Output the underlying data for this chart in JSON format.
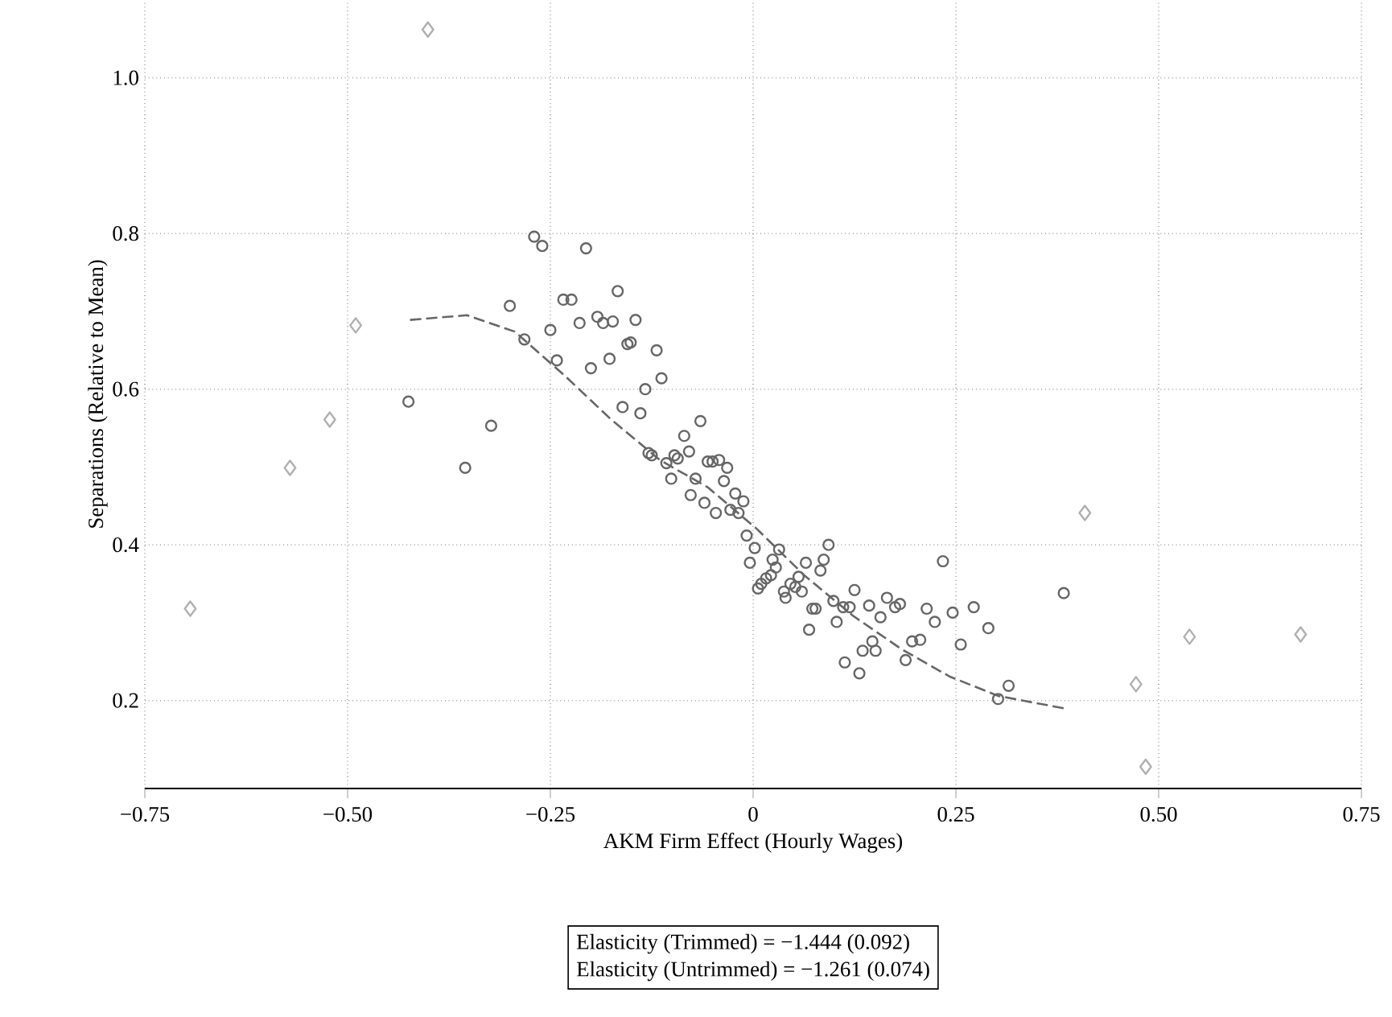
{
  "chart_data": {
    "type": "scatter",
    "xlabel": "AKM Firm Effect (Hourly Wages)",
    "ylabel": "Separations (Relative to Mean)",
    "xlim": [
      -0.75,
      0.75
    ],
    "ylim": [
      0.087,
      1.1
    ],
    "xticks": [
      {
        "value": -0.75,
        "label": "−0.75"
      },
      {
        "value": -0.5,
        "label": "−0.50"
      },
      {
        "value": -0.25,
        "label": "−0.25"
      },
      {
        "value": 0,
        "label": "0"
      },
      {
        "value": 0.25,
        "label": "0.25"
      },
      {
        "value": 0.5,
        "label": "0.50"
      },
      {
        "value": 0.75,
        "label": "0.75"
      }
    ],
    "yticks": [
      {
        "value": 0.2,
        "label": "0.2"
      },
      {
        "value": 0.4,
        "label": "0.4"
      },
      {
        "value": 0.6,
        "label": "0.6"
      },
      {
        "value": 0.8,
        "label": "0.8"
      },
      {
        "value": 1.0,
        "label": "1.0"
      }
    ],
    "grid": true,
    "annotations": [
      "Elasticity (Trimmed) = −1.444 (0.092)",
      "Elasticity (Untrimmed) = −1.261 (0.074)"
    ],
    "series": [
      {
        "type": "scatter",
        "marker": "circle",
        "color": "#666666",
        "x": [
          -0.425,
          -0.355,
          -0.323,
          -0.3,
          -0.282,
          -0.27,
          -0.26,
          -0.25,
          -0.242,
          -0.234,
          -0.224,
          -0.214,
          -0.2,
          -0.206,
          -0.192,
          -0.185,
          -0.173,
          -0.177,
          -0.167,
          -0.161,
          -0.155,
          -0.145,
          -0.151,
          -0.119,
          -0.113,
          -0.133,
          -0.139,
          -0.085,
          -0.065,
          -0.129,
          -0.125,
          -0.107,
          -0.097,
          -0.093,
          -0.079,
          -0.101,
          -0.071,
          -0.056,
          -0.05,
          -0.042,
          -0.032,
          -0.036,
          -0.077,
          -0.06,
          -0.046,
          -0.028,
          -0.018,
          -0.022,
          -0.012,
          -0.008,
          0.002,
          -0.004,
          0.024,
          0.032,
          0.028,
          0.006,
          0.01,
          0.016,
          0.022,
          0.038,
          0.04,
          0.046,
          0.052,
          0.056,
          0.06,
          0.065,
          0.083,
          0.087,
          0.093,
          0.069,
          0.073,
          0.077,
          0.099,
          0.103,
          0.111,
          0.119,
          0.125,
          0.143,
          0.113,
          0.131,
          0.135,
          0.147,
          0.151,
          0.157,
          0.165,
          0.175,
          0.181,
          0.188,
          0.196,
          0.206,
          0.214,
          0.224,
          0.234,
          0.246,
          0.256,
          0.272,
          0.29,
          0.302,
          0.315,
          0.383
        ],
        "values": [
          0.584,
          0.499,
          0.553,
          0.707,
          0.664,
          0.796,
          0.784,
          0.676,
          0.637,
          0.715,
          0.715,
          0.685,
          0.627,
          0.781,
          0.693,
          0.685,
          0.687,
          0.639,
          0.726,
          0.577,
          0.658,
          0.689,
          0.66,
          0.65,
          0.614,
          0.6,
          0.569,
          0.54,
          0.559,
          0.518,
          0.515,
          0.505,
          0.515,
          0.511,
          0.52,
          0.485,
          0.485,
          0.507,
          0.507,
          0.509,
          0.499,
          0.482,
          0.464,
          0.454,
          0.441,
          0.445,
          0.441,
          0.466,
          0.456,
          0.412,
          0.396,
          0.377,
          0.381,
          0.394,
          0.371,
          0.344,
          0.35,
          0.357,
          0.361,
          0.34,
          0.332,
          0.35,
          0.346,
          0.359,
          0.34,
          0.377,
          0.367,
          0.381,
          0.4,
          0.291,
          0.318,
          0.318,
          0.328,
          0.301,
          0.32,
          0.32,
          0.342,
          0.322,
          0.249,
          0.235,
          0.264,
          0.276,
          0.264,
          0.307,
          0.332,
          0.32,
          0.324,
          0.252,
          0.276,
          0.278,
          0.318,
          0.301,
          0.379,
          0.313,
          0.272,
          0.32,
          0.293,
          0.202,
          0.219,
          0.338
        ]
      },
      {
        "type": "scatter",
        "marker": "diamond",
        "color": "#b0b0b0",
        "x": [
          -0.694,
          -0.571,
          -0.522,
          -0.49,
          -0.401,
          0.409,
          0.472,
          0.484,
          0.538,
          0.675
        ],
        "values": [
          0.318,
          0.499,
          0.561,
          0.682,
          1.062,
          0.441,
          0.221,
          0.115,
          0.282,
          0.285
        ]
      },
      {
        "type": "line",
        "line_style": "dashed",
        "marker": "none",
        "color": "#666666",
        "x": [
          -0.423,
          -0.353,
          -0.294,
          -0.234,
          -0.175,
          -0.115,
          -0.056,
          0.004,
          0.063,
          0.123,
          0.183,
          0.242,
          0.302,
          0.383
        ],
        "values": [
          0.689,
          0.695,
          0.674,
          0.619,
          0.561,
          0.509,
          0.474,
          0.421,
          0.361,
          0.309,
          0.266,
          0.231,
          0.206,
          0.19
        ]
      }
    ]
  }
}
